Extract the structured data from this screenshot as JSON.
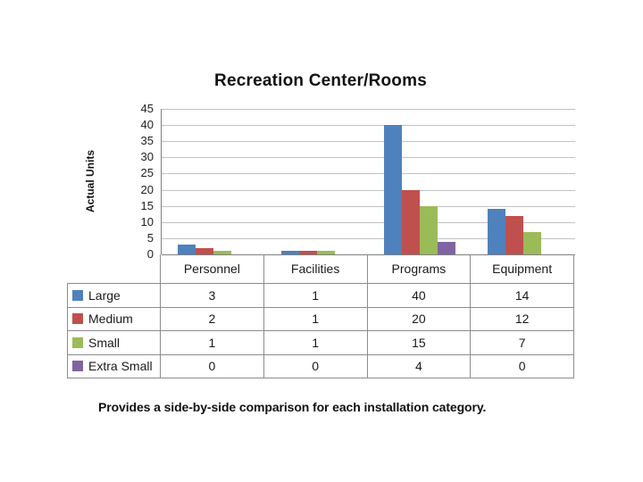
{
  "chart_data": {
    "type": "bar",
    "title": "Recreation Center/Rooms",
    "ylabel": "Actual Units",
    "xlabel": "",
    "categories": [
      "Personnel",
      "Facilities",
      "Programs",
      "Equipment"
    ],
    "series": [
      {
        "name": "Large",
        "color": "#4F81BD",
        "values": [
          3,
          1,
          40,
          14
        ]
      },
      {
        "name": "Medium",
        "color": "#C0504D",
        "values": [
          2,
          1,
          20,
          12
        ]
      },
      {
        "name": "Small",
        "color": "#9BBB59",
        "values": [
          1,
          1,
          15,
          7
        ]
      },
      {
        "name": "Extra Small",
        "color": "#8064A2",
        "values": [
          0,
          0,
          4,
          0
        ]
      }
    ],
    "ylim": [
      0,
      45
    ],
    "yticks": [
      45,
      40,
      35,
      30,
      25,
      20,
      15,
      10,
      5,
      0
    ],
    "grid": true,
    "legend_position": "data-table-left",
    "data_table": true
  },
  "caption": "Provides a side-by-side comparison for each installation category."
}
